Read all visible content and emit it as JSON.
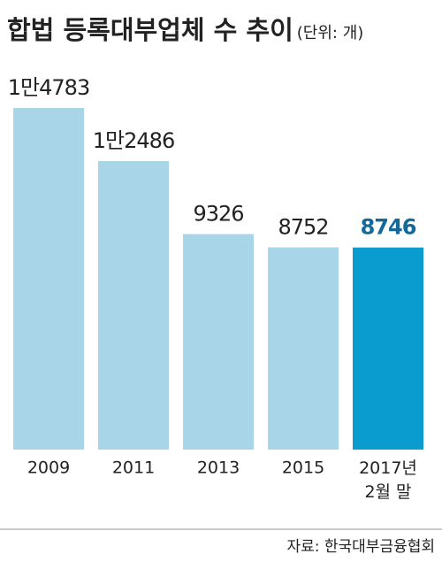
{
  "chart_data": {
    "type": "bar",
    "title": "합법 등록대부업체 수 추이",
    "subtitle": "(단위: 개)",
    "categories": [
      "2009",
      "2011",
      "2013",
      "2015",
      "2017년 2월 말"
    ],
    "values": [
      14783,
      12486,
      9326,
      8752,
      8746
    ],
    "value_labels": [
      "1만4783",
      "1만2486",
      "9326",
      "8752",
      "8746"
    ],
    "colors": [
      "#a9d5e8",
      "#a9d5e8",
      "#a9d5e8",
      "#a9d5e8",
      "#0a9ccf"
    ],
    "label_colors": [
      "#222222",
      "#222222",
      "#222222",
      "#222222",
      "#13699b"
    ],
    "source": "자료: 한국대부금융협회"
  }
}
